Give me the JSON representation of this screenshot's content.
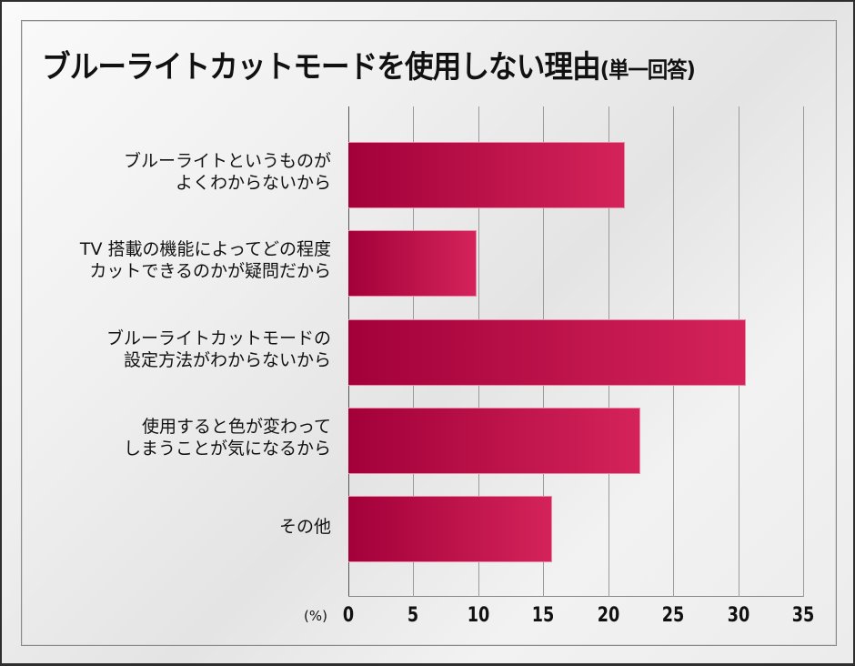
{
  "chart_data": {
    "type": "bar",
    "orientation": "horizontal",
    "title": "ブルーライトカットモードを使用しない理由",
    "subtitle": "(単一回答)",
    "xlabel": "(%)",
    "ylabel": "",
    "xlim": [
      0,
      35
    ],
    "x_ticks": [
      "0",
      "5",
      "10",
      "15",
      "20",
      "25",
      "30",
      "35"
    ],
    "grid": true,
    "legend": null,
    "categories": [
      [
        "ブルーライトというものが",
        "よくわからないから"
      ],
      [
        "TV 搭載の機能によってどの程度",
        "カットできるのかが疑問だから"
      ],
      [
        "ブルーライトカットモードの",
        "設定方法がわからないから"
      ],
      [
        "使用すると色が変わって",
        "しまうことが気になるから"
      ],
      [
        "その他"
      ]
    ],
    "values": [
      21.3,
      9.9,
      30.6,
      22.5,
      15.7
    ],
    "bar_color_start": "#a3003a",
    "bar_color_end": "#d4235a"
  },
  "labels": {
    "title": "ブルーライトカットモードを使用しない理由",
    "subtitle": "(単一回答)",
    "unit": "(%)",
    "cat0_l1": "ブルーライトというものが",
    "cat0_l2": "よくわからないから",
    "cat1_l1": "TV 搭載の機能によってどの程度",
    "cat1_l2": "カットできるのかが疑問だから",
    "cat2_l1": "ブルーライトカットモードの",
    "cat2_l2": "設定方法がわからないから",
    "cat3_l1": "使用すると色が変わって",
    "cat3_l2": "しまうことが気になるから",
    "cat4_l1": "その他"
  }
}
